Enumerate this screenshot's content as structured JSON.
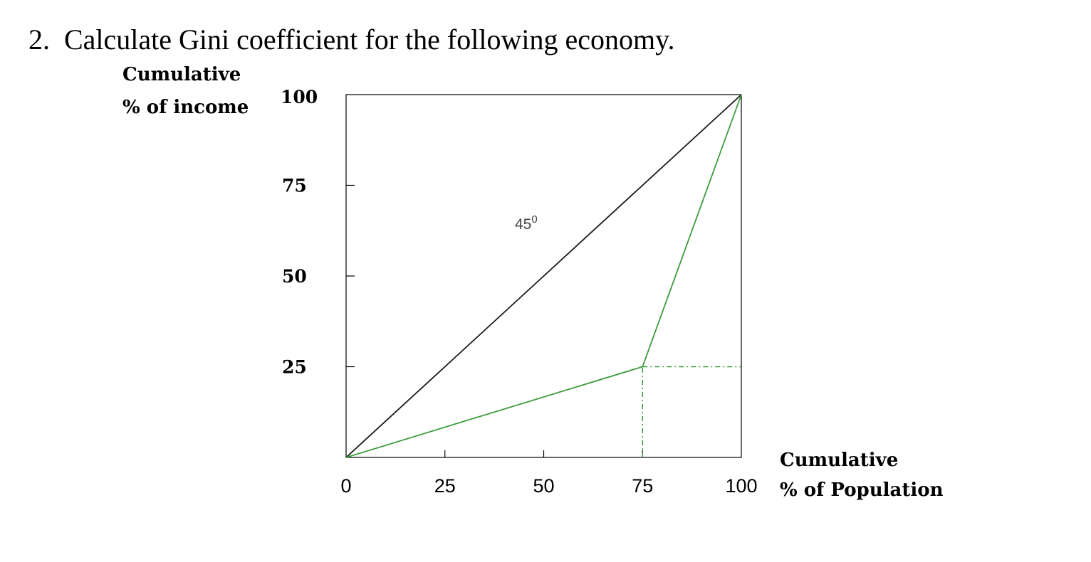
{
  "question": {
    "number": "2.",
    "text": "Calculate Gini coefficient for the following economy."
  },
  "chart_data": {
    "type": "line",
    "ylabel": [
      "Cumulative",
      "% of income"
    ],
    "xlabel": [
      "Cumulative",
      "% of Population"
    ],
    "xlim": [
      0,
      100
    ],
    "ylim": [
      0,
      100
    ],
    "x_ticks": [
      "0",
      "25",
      "50",
      "75",
      "100"
    ],
    "y_ticks": [
      "100",
      "75",
      "50",
      "25"
    ],
    "x_tick_values": [
      0,
      25,
      50,
      75,
      100
    ],
    "y_tick_values": [
      100,
      75,
      50,
      25
    ],
    "annotation": {
      "label": "45",
      "superscript": "0"
    },
    "series": [
      {
        "x": [
          0,
          100
        ],
        "y": [
          0,
          100
        ],
        "color": "#1a1a1a"
      },
      {
        "x": [
          0,
          75,
          100
        ],
        "y": [
          0,
          25,
          100
        ],
        "color": "#3e9a3e"
      }
    ],
    "guides": [
      {
        "x": [
          75,
          75
        ],
        "y": [
          0,
          25
        ],
        "style": "dash-dot",
        "color": "#3e9a3e"
      },
      {
        "x": [
          75,
          100
        ],
        "y": [
          25,
          25
        ],
        "style": "dash-dot",
        "color": "#3e9a3e"
      }
    ],
    "grid": false,
    "frame": "box"
  }
}
